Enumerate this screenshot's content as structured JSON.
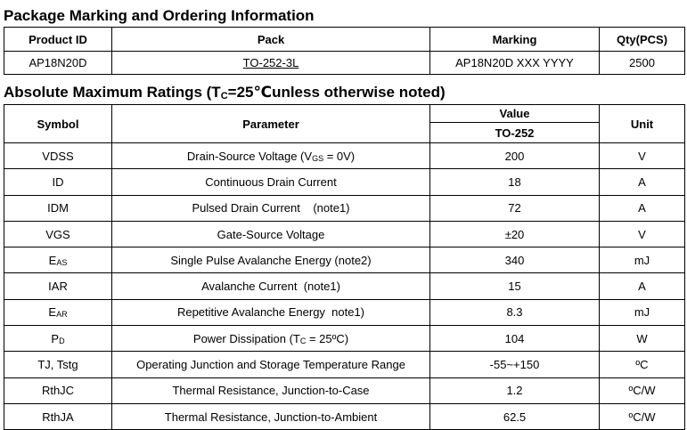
{
  "ordering": {
    "title": "Package Marking and Ordering Information",
    "headers": {
      "product_id": "Product ID",
      "pack": "Pack",
      "marking": "Marking",
      "qty": "Qty(PCS)"
    },
    "row": {
      "product_id": "AP18N20D",
      "pack": "TO-252-3L",
      "marking": "AP18N20D XXX YYYY",
      "qty": "2500"
    }
  },
  "ratings": {
    "title_prefix": "Absolute Maximum Ratings (T",
    "title_sub": "C",
    "title_suffix": "=25℃unless otherwise noted)",
    "headers": {
      "symbol": "Symbol",
      "parameter": "Parameter",
      "value": "Value",
      "package": "TO-252",
      "unit": "Unit"
    },
    "rows": [
      {
        "symbol": "VDSS",
        "symbol_sub": "",
        "param": "Drain-Source Voltage (V",
        "param_sub": "GS",
        "param_tail": " = 0V)",
        "value": "200",
        "unit": "V"
      },
      {
        "symbol": "ID",
        "symbol_sub": "",
        "param": "Continuous Drain Current",
        "param_sub": "",
        "param_tail": "",
        "value": "18",
        "unit": "A"
      },
      {
        "symbol": "IDM",
        "symbol_sub": "",
        "param": "Pulsed Drain Current    (note1)",
        "param_sub": "",
        "param_tail": "",
        "value": "72",
        "unit": "A"
      },
      {
        "symbol": "VGS",
        "symbol_sub": "",
        "param": "Gate-Source Voltage",
        "param_sub": "",
        "param_tail": "",
        "value": "±20",
        "unit": "V"
      },
      {
        "symbol": "E",
        "symbol_sub": "AS",
        "param": "Single Pulse Avalanche Energy (note2)",
        "param_sub": "",
        "param_tail": "",
        "value": "340",
        "unit": "mJ"
      },
      {
        "symbol": "IAR",
        "symbol_sub": "",
        "param": "Avalanche Current  (note1)",
        "param_sub": "",
        "param_tail": "",
        "value": "15",
        "unit": "A"
      },
      {
        "symbol": "E",
        "symbol_sub": "AR",
        "param": "Repetitive Avalanche Energy  note1)",
        "param_sub": "",
        "param_tail": "",
        "value": "8.3",
        "unit": "mJ"
      },
      {
        "symbol": "P",
        "symbol_sub": "D",
        "param": "Power Dissipation (T",
        "param_sub": "C",
        "param_tail": " = 25ºC)",
        "value": "104",
        "unit": "W"
      },
      {
        "symbol": "TJ, Tstg",
        "symbol_sub": "",
        "param": "Operating Junction and Storage Temperature Range",
        "param_sub": "",
        "param_tail": "",
        "value": "-55~+150",
        "unit": "ºC"
      },
      {
        "symbol": "RthJC",
        "symbol_sub": "",
        "param": "Thermal Resistance, Junction-to-Case",
        "param_sub": "",
        "param_tail": "",
        "value": "1.2",
        "unit": "ºC/W"
      },
      {
        "symbol": "RthJA",
        "symbol_sub": "",
        "param": "Thermal Resistance, Junction-to-Ambient",
        "param_sub": "",
        "param_tail": "",
        "value": "62.5",
        "unit": "ºC/W"
      }
    ]
  }
}
